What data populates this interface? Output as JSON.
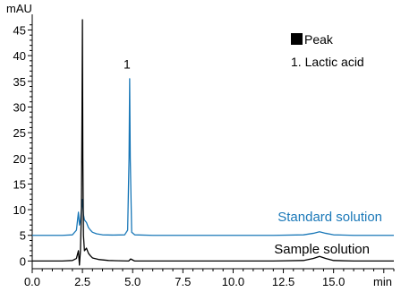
{
  "chart_data": {
    "type": "line",
    "ylabel": "mAU",
    "xlabel": "min",
    "xlim": [
      0,
      18
    ],
    "ylim": [
      -1.5,
      47
    ],
    "x_ticks": [
      "0.0",
      "2.5",
      "5.0",
      "7.5",
      "10.0",
      "12.5",
      "15.0"
    ],
    "x_tick_values": [
      0,
      2.5,
      5,
      7.5,
      10,
      12.5,
      15
    ],
    "y_ticks": [
      "0",
      "5",
      "10",
      "15",
      "20",
      "25",
      "30",
      "35",
      "40",
      "45"
    ],
    "y_tick_values": [
      0,
      5,
      10,
      15,
      20,
      25,
      30,
      35,
      40,
      45
    ],
    "legend": {
      "marker_label": "Peak",
      "items": [
        "1. Lactic acid"
      ]
    },
    "peak_labels": [
      {
        "text": "1",
        "x": 4.85,
        "y": 37.5
      }
    ],
    "series": [
      {
        "name": "Standard solution",
        "color": "#1a78b8",
        "x": [
          0,
          1.5,
          2.0,
          2.2,
          2.3,
          2.35,
          2.4,
          2.45,
          2.5,
          2.55,
          2.6,
          2.7,
          2.8,
          2.9,
          3.0,
          3.2,
          3.5,
          4.0,
          4.6,
          4.75,
          4.82,
          4.85,
          4.88,
          4.95,
          5.1,
          6,
          8,
          10,
          12,
          13.5,
          14.0,
          14.3,
          14.6,
          15.0,
          16,
          18
        ],
        "y": [
          5,
          5,
          5.1,
          6,
          9.5,
          7,
          8,
          10,
          12,
          9,
          8,
          7.5,
          6.5,
          6,
          5.6,
          5.3,
          5.1,
          5.05,
          5.1,
          6,
          20,
          35.5,
          20,
          5.6,
          5.1,
          5,
          5,
          5,
          5,
          5.1,
          5.4,
          5.7,
          5.4,
          5.1,
          5,
          5
        ]
      },
      {
        "name": "Sample solution",
        "color": "#000000",
        "x": [
          0,
          1.5,
          2.0,
          2.2,
          2.3,
          2.35,
          2.4,
          2.45,
          2.48,
          2.5,
          2.52,
          2.55,
          2.6,
          2.7,
          2.8,
          2.9,
          3.0,
          3.3,
          3.8,
          4.8,
          4.9,
          5.0,
          5.1,
          6,
          8,
          10,
          12,
          13.5,
          14.0,
          14.3,
          14.6,
          15.0,
          16,
          18
        ],
        "y": [
          0,
          0,
          0.1,
          0.5,
          2,
          -0.8,
          2,
          10,
          30,
          48,
          20,
          5,
          2,
          2.5,
          1.5,
          1,
          0.6,
          0.3,
          0.1,
          0,
          0.4,
          0.2,
          0,
          0,
          0,
          0,
          0,
          0.1,
          0.5,
          0.9,
          0.5,
          0.1,
          0,
          0
        ]
      }
    ]
  }
}
